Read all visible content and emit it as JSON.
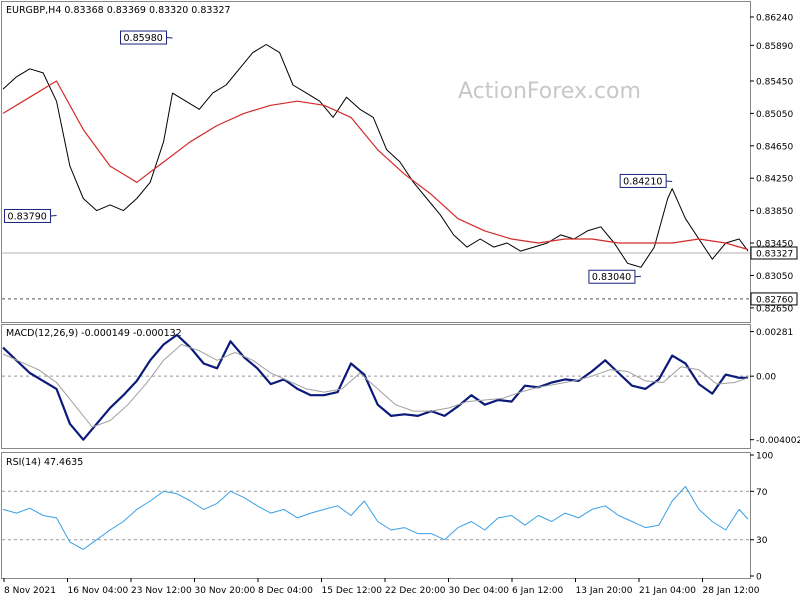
{
  "watermark": "ActionForex.com",
  "chart_data": [
    {
      "type": "line",
      "panel": "price",
      "title": "EURGBP,H4 0.83368 0.83369 0.83320 0.83327",
      "symbol": "EURGBP",
      "timeframe": "H4",
      "ohlc": [
        "0.83368",
        "0.83369",
        "0.83320",
        "0.83327"
      ],
      "ylim": [
        0.825,
        0.864
      ],
      "yticks": [
        "0.86240",
        "0.85890",
        "0.85450",
        "0.85050",
        "0.84650",
        "0.84250",
        "0.83850",
        "0.83450",
        "0.83050",
        "0.82650"
      ],
      "ytick_values": [
        0.8624,
        0.8589,
        0.8545,
        0.8505,
        0.8465,
        0.8425,
        0.8385,
        0.8345,
        0.8305,
        0.8265
      ],
      "current_price": "0.83327",
      "current_price_value": 0.83327,
      "support_level": "0.82760",
      "support_level_value": 0.8276,
      "annotations": [
        {
          "text": "0.85980",
          "x": 38,
          "y": 0.8598
        },
        {
          "text": "0.83790",
          "x": 12,
          "y": 0.8379
        },
        {
          "text": "0.84210",
          "x": 150,
          "y": 0.8421
        },
        {
          "text": "0.83040",
          "x": 143,
          "y": 0.8304
        }
      ],
      "series": [
        {
          "key": "price",
          "color": "#000000",
          "x": [
            0,
            3,
            6,
            9,
            12,
            15,
            18,
            21,
            24,
            27,
            30,
            33,
            36,
            38,
            41,
            44,
            47,
            50,
            53,
            56,
            59,
            62,
            65,
            68,
            71,
            74,
            77,
            80,
            83,
            86,
            89,
            92,
            95,
            98,
            101,
            104,
            107,
            110,
            113,
            116,
            119,
            122,
            125,
            128,
            131,
            134,
            137,
            140,
            143,
            146,
            149,
            150,
            153,
            156,
            159,
            162,
            165,
            167
          ],
          "values": [
            0.8535,
            0.855,
            0.856,
            0.8555,
            0.852,
            0.844,
            0.84,
            0.8385,
            0.8392,
            0.8385,
            0.84,
            0.842,
            0.847,
            0.853,
            0.852,
            0.851,
            0.853,
            0.854,
            0.856,
            0.858,
            0.859,
            0.858,
            0.854,
            0.853,
            0.852,
            0.85,
            0.8525,
            0.851,
            0.85,
            0.846,
            0.8445,
            0.842,
            0.84,
            0.838,
            0.8355,
            0.834,
            0.835,
            0.834,
            0.8345,
            0.8335,
            0.834,
            0.8345,
            0.8355,
            0.835,
            0.836,
            0.8365,
            0.8345,
            0.832,
            0.8315,
            0.834,
            0.84,
            0.8412,
            0.8375,
            0.835,
            0.8325,
            0.8345,
            0.835,
            0.8335
          ]
        },
        {
          "key": "ma",
          "color": "#d42a2a",
          "x": [
            0,
            6,
            12,
            18,
            24,
            30,
            36,
            42,
            48,
            54,
            60,
            66,
            72,
            78,
            84,
            90,
            96,
            102,
            108,
            114,
            120,
            126,
            132,
            138,
            144,
            150,
            156,
            162,
            167
          ],
          "values": [
            0.8505,
            0.8525,
            0.8545,
            0.8485,
            0.844,
            0.842,
            0.8445,
            0.847,
            0.849,
            0.8505,
            0.8515,
            0.852,
            0.8515,
            0.85,
            0.846,
            0.843,
            0.8405,
            0.8375,
            0.836,
            0.835,
            0.8345,
            0.835,
            0.835,
            0.8345,
            0.8345,
            0.8345,
            0.835,
            0.8345,
            0.8337
          ]
        }
      ]
    },
    {
      "type": "line",
      "panel": "macd",
      "title": "MACD(12,26,9) -0.000149 -0.000132",
      "ylim": [
        -0.0044,
        0.0031
      ],
      "yticks": [
        "0.00281",
        "0.00",
        "-0.004002"
      ],
      "ytick_values": [
        0.00281,
        0.0,
        -0.004002
      ],
      "series": [
        {
          "key": "macd",
          "color": "#0c1a7a",
          "x": [
            0,
            3,
            6,
            9,
            12,
            15,
            18,
            21,
            24,
            27,
            30,
            33,
            36,
            39,
            42,
            45,
            48,
            51,
            54,
            57,
            60,
            63,
            66,
            69,
            72,
            75,
            78,
            81,
            84,
            87,
            90,
            93,
            96,
            99,
            102,
            105,
            108,
            111,
            114,
            117,
            120,
            123,
            126,
            129,
            132,
            135,
            138,
            141,
            144,
            147,
            150,
            153,
            156,
            159,
            162,
            165,
            167
          ],
          "values": [
            0.0018,
            0.001,
            0.0002,
            -0.0003,
            -0.0008,
            -0.003,
            -0.004,
            -0.003,
            -0.002,
            -0.0012,
            -0.0003,
            0.001,
            0.002,
            0.0026,
            0.0018,
            0.0008,
            0.0005,
            0.0022,
            0.0012,
            0.0005,
            -0.0005,
            -0.0002,
            -0.0008,
            -0.0012,
            -0.0012,
            -0.001,
            0.0008,
            0.0001,
            -0.0018,
            -0.0025,
            -0.0024,
            -0.0025,
            -0.0022,
            -0.0025,
            -0.0019,
            -0.0012,
            -0.0018,
            -0.0015,
            -0.0016,
            -0.0006,
            -0.0007,
            -0.0004,
            -0.0002,
            -0.0003,
            0.0003,
            0.001,
            0.0002,
            -0.0006,
            -0.0008,
            -0.0002,
            0.0013,
            0.0008,
            -0.0005,
            -0.0011,
            0.0001,
            -0.0001,
            -0.0001
          ]
        },
        {
          "key": "signal",
          "color": "#a0a0a0",
          "x": [
            0,
            4,
            8,
            12,
            16,
            20,
            24,
            28,
            32,
            36,
            40,
            44,
            48,
            52,
            56,
            60,
            64,
            68,
            72,
            76,
            80,
            84,
            88,
            92,
            96,
            100,
            104,
            108,
            112,
            116,
            120,
            124,
            128,
            132,
            136,
            140,
            144,
            148,
            152,
            156,
            160,
            164,
            167
          ],
          "values": [
            0.0014,
            0.0009,
            0.0004,
            -0.0004,
            -0.0018,
            -0.0032,
            -0.0028,
            -0.0018,
            -0.0005,
            0.001,
            0.002,
            0.0016,
            0.001,
            0.0015,
            0.001,
            0.0002,
            -0.0003,
            -0.0008,
            -0.001,
            -0.0008,
            0.0002,
            -0.0008,
            -0.0018,
            -0.0022,
            -0.0022,
            -0.002,
            -0.0016,
            -0.0015,
            -0.0014,
            -0.001,
            -0.0007,
            -0.0005,
            -0.0003,
            0.0,
            0.0004,
            0.0003,
            -0.0003,
            -0.0004,
            0.0006,
            0.0004,
            -0.0005,
            -0.0004,
            -0.0001
          ]
        }
      ]
    },
    {
      "type": "line",
      "panel": "rsi",
      "title": "RSI(14) 47.4635",
      "ylim": [
        0,
        100
      ],
      "yticks": [
        "100",
        "70",
        "30",
        "0"
      ],
      "ytick_values": [
        100,
        70,
        30,
        0
      ],
      "levels": [
        70,
        30
      ],
      "series": [
        {
          "key": "rsi",
          "color": "#3aa0e6",
          "x": [
            0,
            3,
            6,
            9,
            12,
            15,
            18,
            21,
            24,
            27,
            30,
            33,
            36,
            39,
            42,
            45,
            48,
            51,
            54,
            57,
            60,
            63,
            66,
            69,
            72,
            75,
            78,
            81,
            84,
            87,
            90,
            93,
            96,
            99,
            102,
            105,
            108,
            111,
            114,
            117,
            120,
            123,
            126,
            129,
            132,
            135,
            138,
            141,
            144,
            147,
            150,
            153,
            156,
            159,
            162,
            165,
            167
          ],
          "values": [
            55,
            52,
            56,
            50,
            48,
            28,
            22,
            30,
            38,
            45,
            55,
            62,
            70,
            68,
            62,
            55,
            60,
            70,
            65,
            58,
            52,
            55,
            48,
            52,
            55,
            58,
            50,
            62,
            45,
            38,
            40,
            35,
            35,
            30,
            40,
            45,
            38,
            48,
            50,
            42,
            50,
            45,
            52,
            48,
            55,
            58,
            50,
            45,
            40,
            42,
            62,
            74,
            55,
            45,
            38,
            55,
            47
          ]
        }
      ]
    }
  ],
  "x_axis": {
    "tick_labels": [
      "8 Nov 2021",
      "16 Nov 04:00",
      "23 Nov 12:00",
      "30 Nov 20:00",
      "8 Dec 04:00",
      "15 Dec 12:00",
      "22 Dec 20:00",
      "30 Dec 04:00",
      "6 Jan 12:00",
      "13 Jan 20:00",
      "21 Jan 04:00",
      "28 Jan 12:00"
    ]
  }
}
